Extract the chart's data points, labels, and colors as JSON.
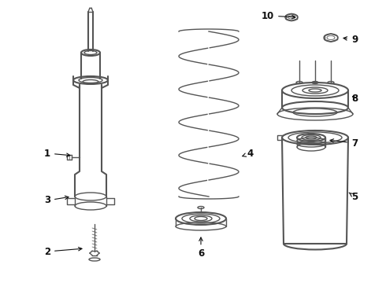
{
  "background_color": "#ffffff",
  "line_color": "#555555",
  "label_color": "#111111",
  "fig_width": 4.9,
  "fig_height": 3.6,
  "dpi": 100
}
